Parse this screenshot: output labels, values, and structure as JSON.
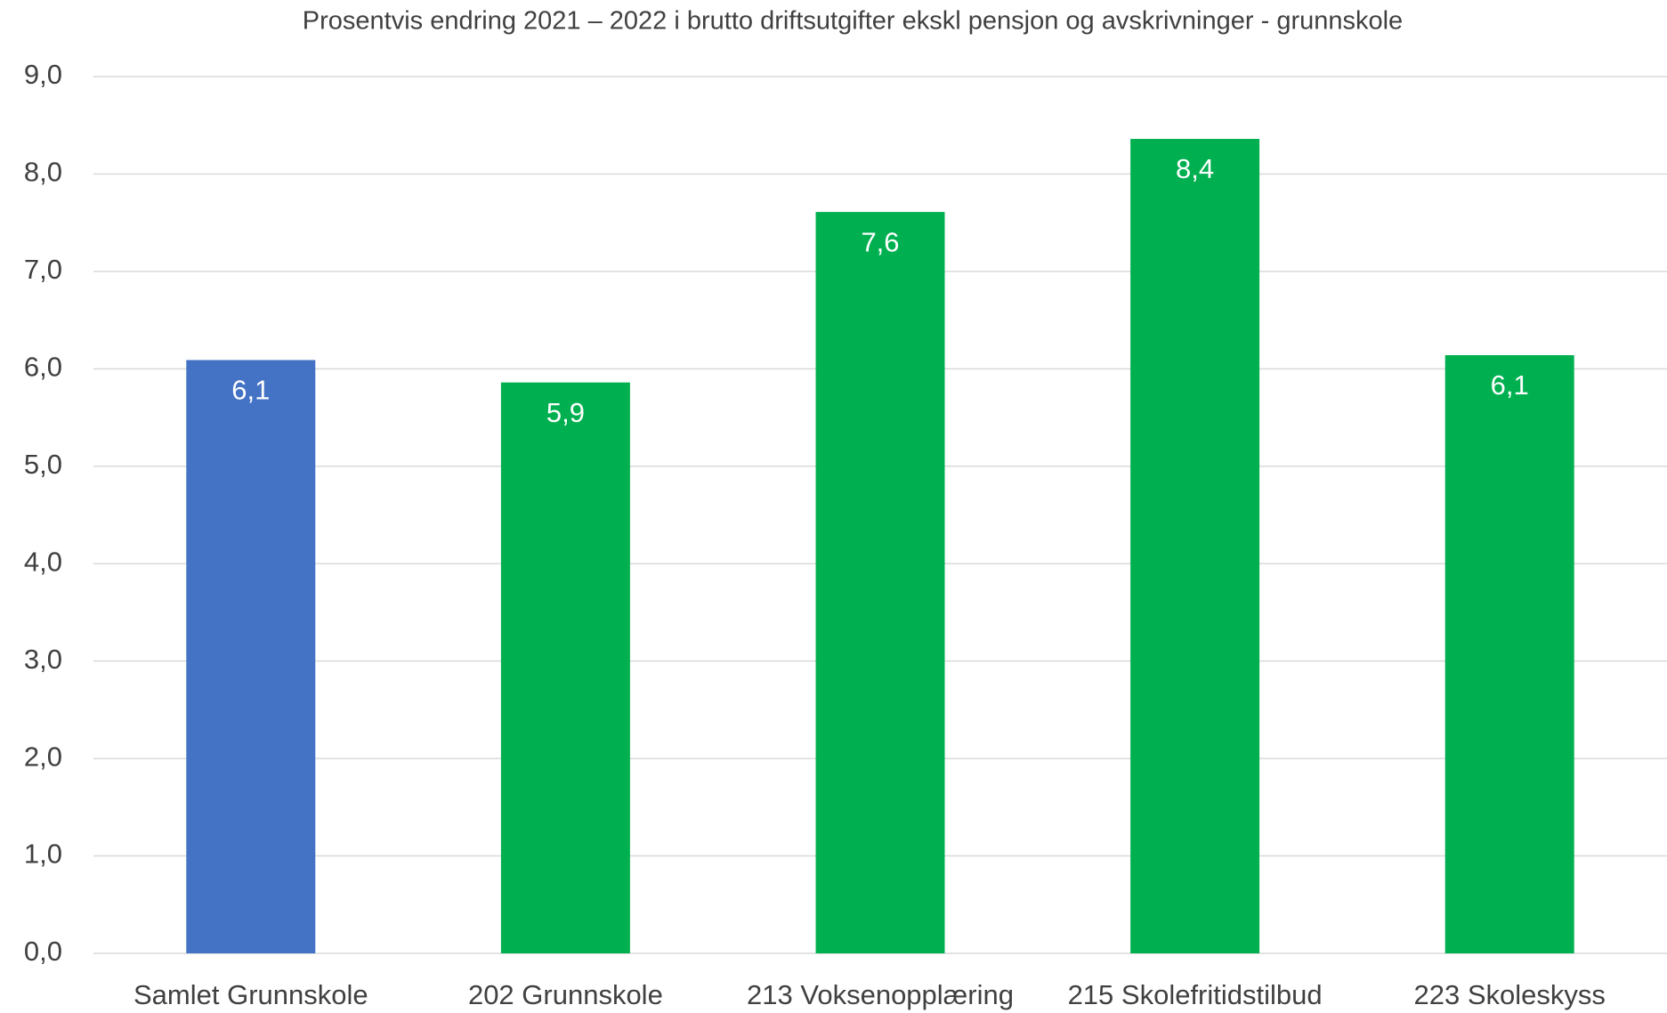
{
  "chart_data": {
    "type": "bar",
    "title": "Prosentvis endring 2021 – 2022 i brutto driftsutgifter ekskl pensjon og avskrivninger - grunnskole",
    "categories": [
      "Samlet Grunnskole",
      "202 Grunnskole",
      "213 Voksenopplæring",
      "215 Skolefritidstilbud",
      "223 Skoleskyss"
    ],
    "values": [
      6.09,
      5.86,
      7.61,
      8.36,
      6.14
    ],
    "value_labels": [
      "6,1",
      "5,9",
      "7,6",
      "8,4",
      "6,1"
    ],
    "colors": [
      "#4472c4",
      "#00b050",
      "#00b050",
      "#00b050",
      "#00b050"
    ],
    "ylim": [
      0,
      9
    ],
    "yticks": [
      {
        "value": 0,
        "label": "0,0"
      },
      {
        "value": 1,
        "label": "1,0"
      },
      {
        "value": 2,
        "label": "2,0"
      },
      {
        "value": 3,
        "label": "3,0"
      },
      {
        "value": 4,
        "label": "4,0"
      },
      {
        "value": 5,
        "label": "5,0"
      },
      {
        "value": 6,
        "label": "6,0"
      },
      {
        "value": 7,
        "label": "7,0"
      },
      {
        "value": 8,
        "label": "8,0"
      },
      {
        "value": 9,
        "label": "9,0"
      }
    ],
    "grid": true
  }
}
